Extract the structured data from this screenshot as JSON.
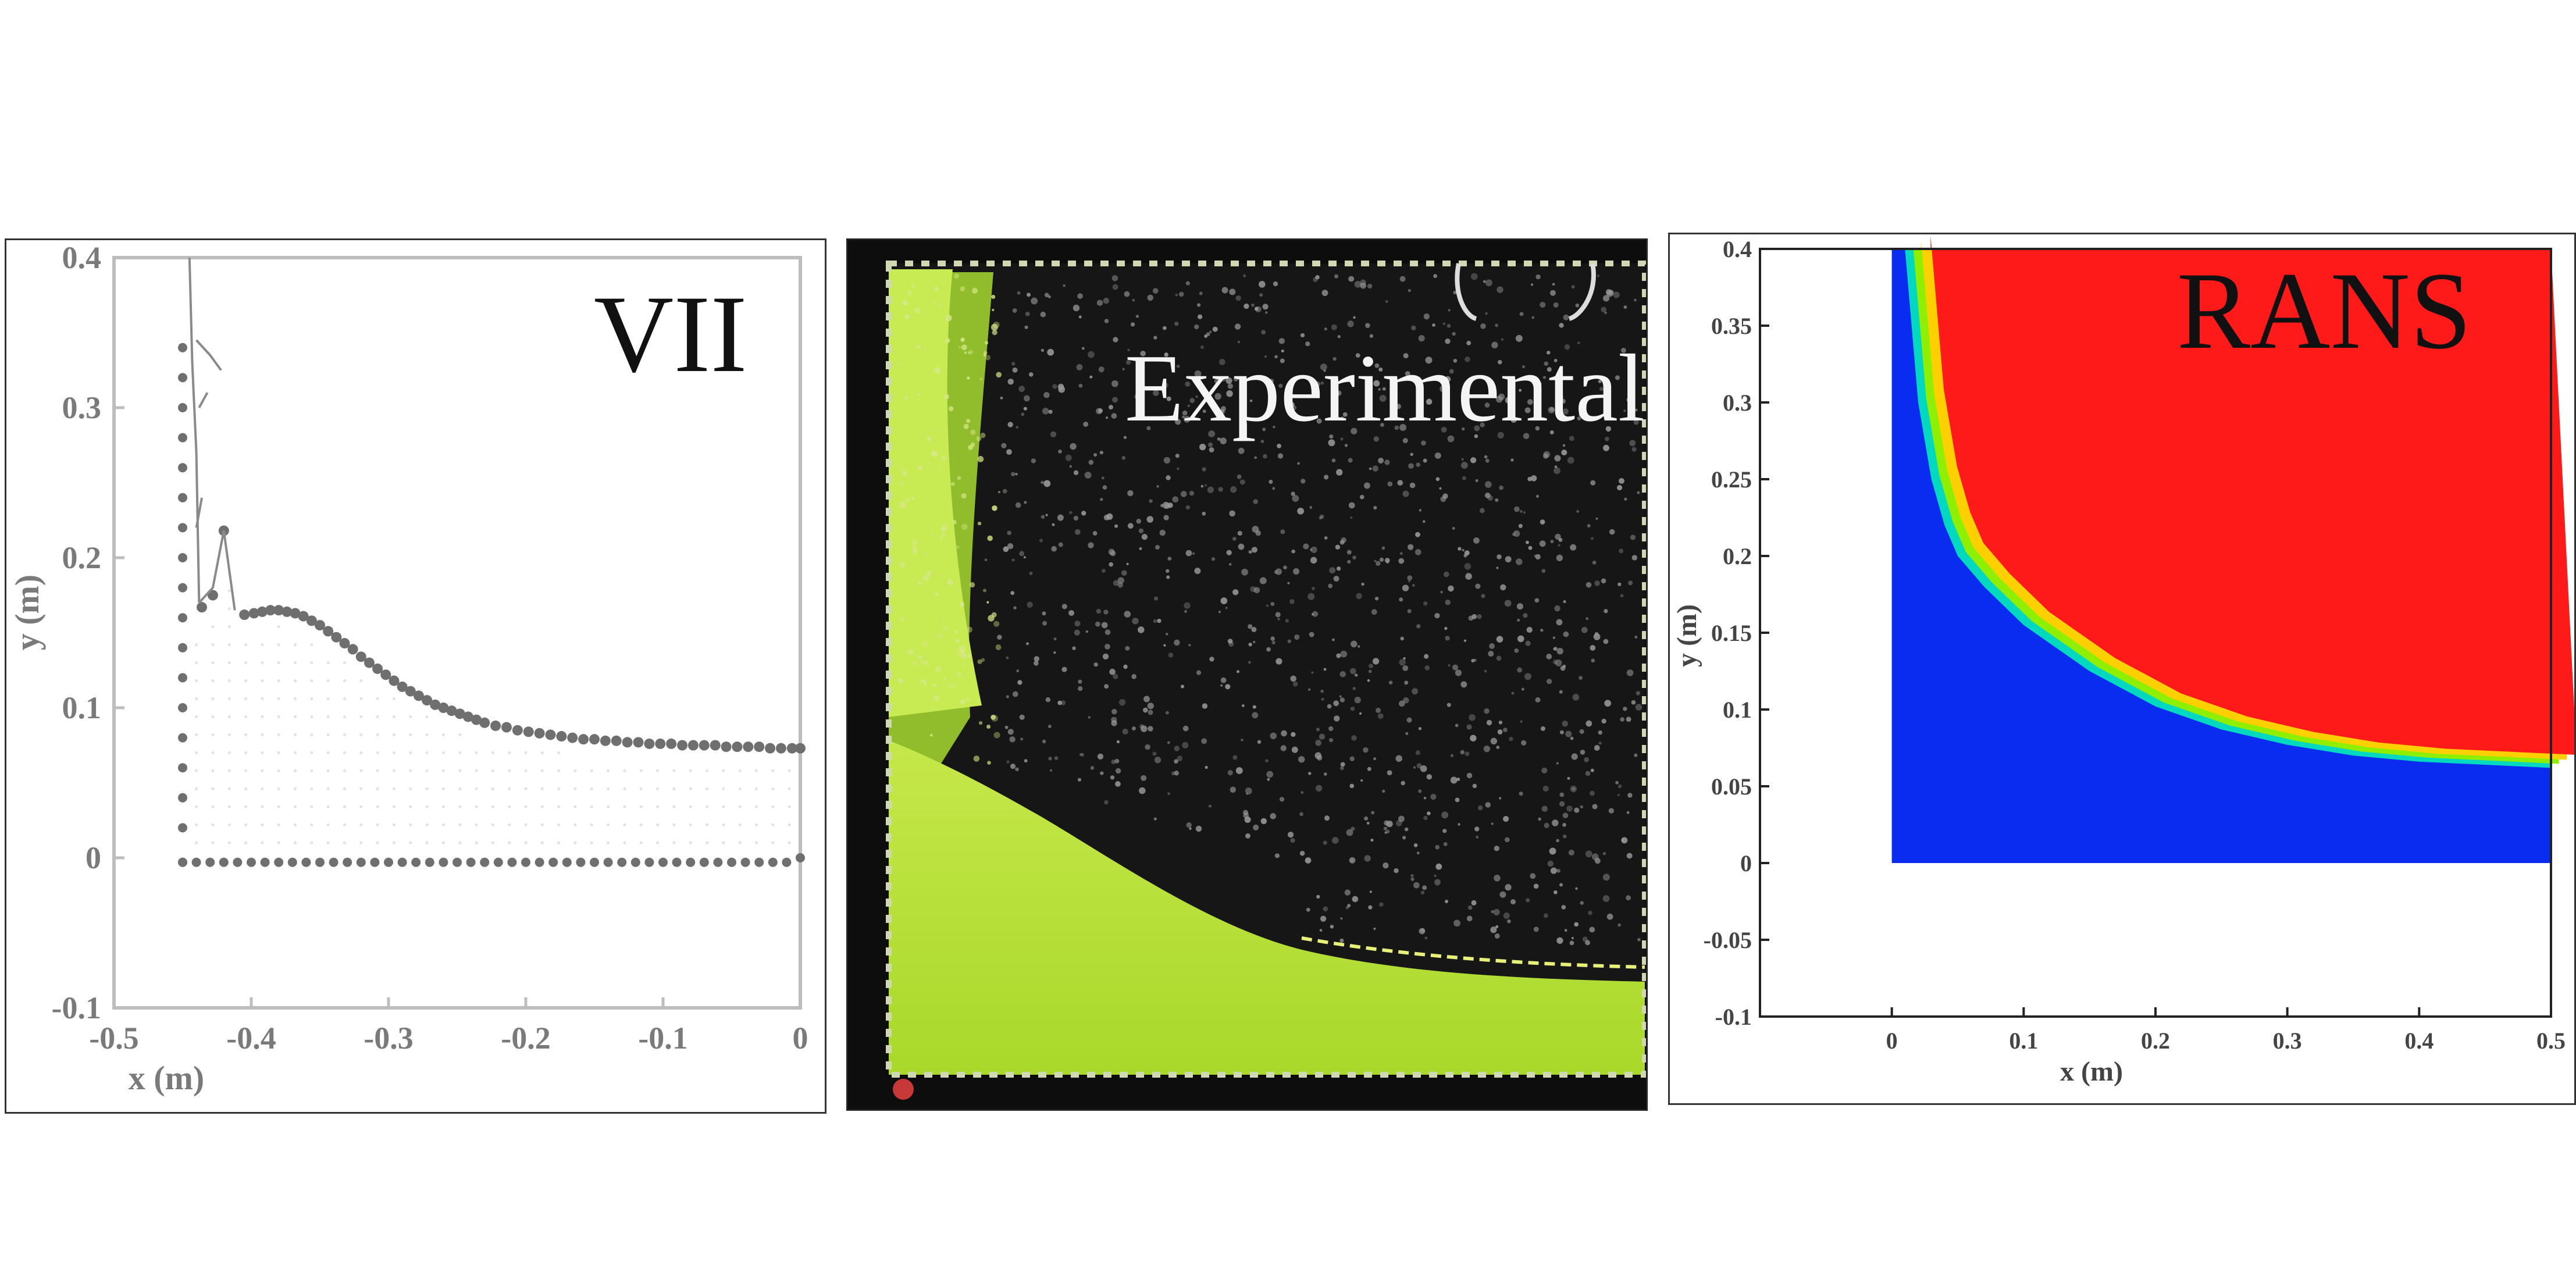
{
  "chart_data": [
    {
      "type": "scatter",
      "title": "VII",
      "xlabel": "x (m)",
      "ylabel": "y (m)",
      "xlim": [
        -0.5,
        0
      ],
      "ylim": [
        -0.1,
        0.4
      ],
      "x_ticks": [
        "-0.5",
        "-0.4",
        "-0.3",
        "-0.2",
        "-0.1",
        "0"
      ],
      "y_ticks": [
        "0.4",
        "0.3",
        "0.2",
        "0.1",
        "0",
        "-0.1"
      ],
      "grid": false,
      "series": [
        {
          "x": [
            -0.45,
            -0.45,
            -0.45,
            -0.45,
            -0.45,
            -0.45,
            -0.45,
            -0.45,
            -0.45,
            -0.45,
            -0.45,
            -0.45,
            -0.45,
            -0.45,
            -0.45,
            -0.45,
            -0.45,
            -0.45
          ],
          "y": [
            -0.003,
            0.02,
            0.04,
            0.06,
            0.08,
            0.1,
            0.12,
            0.14,
            0.16,
            0.18,
            0.2,
            0.22,
            0.24,
            0.26,
            0.28,
            0.3,
            0.32,
            0.34
          ]
        },
        {
          "x": [
            -0.45,
            -0.44,
            -0.43,
            -0.42,
            -0.41,
            -0.4,
            -0.39,
            -0.38,
            -0.37,
            -0.36,
            -0.35,
            -0.34,
            -0.33,
            -0.32,
            -0.31,
            -0.3,
            -0.29,
            -0.28,
            -0.27,
            -0.26,
            -0.25,
            -0.24,
            -0.23,
            -0.22,
            -0.21,
            -0.2,
            -0.19,
            -0.18,
            -0.17,
            -0.16,
            -0.15,
            -0.14,
            -0.13,
            -0.12,
            -0.11,
            -0.1,
            -0.09,
            -0.08,
            -0.07,
            -0.06,
            -0.05,
            -0.04,
            -0.03,
            -0.02,
            -0.01,
            0
          ],
          "y": [
            -0.003,
            -0.003,
            -0.003,
            -0.003,
            -0.003,
            -0.003,
            -0.003,
            -0.003,
            -0.003,
            -0.003,
            -0.003,
            -0.003,
            -0.003,
            -0.003,
            -0.003,
            -0.003,
            -0.003,
            -0.003,
            -0.003,
            -0.003,
            -0.003,
            -0.003,
            -0.003,
            -0.003,
            -0.003,
            -0.003,
            -0.003,
            -0.003,
            -0.003,
            -0.003,
            -0.003,
            -0.003,
            -0.003,
            -0.003,
            -0.003,
            -0.003,
            -0.003,
            -0.003,
            -0.003,
            -0.003,
            -0.003,
            -0.003,
            -0.003,
            -0.003,
            -0.003,
            0.0
          ]
        },
        {
          "x": [
            -0.436,
            -0.428,
            -0.42,
            -0.405,
            -0.398,
            -0.392,
            -0.386,
            -0.38,
            -0.374,
            -0.368,
            -0.362,
            -0.356,
            -0.35,
            -0.344,
            -0.338,
            -0.332,
            -0.326,
            -0.32,
            -0.314,
            -0.308,
            -0.302,
            -0.296,
            -0.29,
            -0.284,
            -0.278,
            -0.272,
            -0.266,
            -0.26,
            -0.254,
            -0.248,
            -0.242,
            -0.236,
            -0.23,
            -0.222,
            -0.214,
            -0.206,
            -0.198,
            -0.19,
            -0.182,
            -0.174,
            -0.166,
            -0.158,
            -0.15,
            -0.142,
            -0.134,
            -0.126,
            -0.118,
            -0.11,
            -0.102,
            -0.094,
            -0.086,
            -0.078,
            -0.07,
            -0.062,
            -0.054,
            -0.046,
            -0.038,
            -0.03,
            -0.022,
            -0.014,
            -0.006,
            0
          ],
          "y": [
            0.167,
            0.175,
            0.218,
            0.162,
            0.163,
            0.164,
            0.165,
            0.165,
            0.164,
            0.163,
            0.161,
            0.158,
            0.155,
            0.151,
            0.147,
            0.143,
            0.139,
            0.134,
            0.13,
            0.126,
            0.122,
            0.118,
            0.114,
            0.111,
            0.108,
            0.105,
            0.102,
            0.1,
            0.098,
            0.096,
            0.094,
            0.092,
            0.09,
            0.088,
            0.087,
            0.085,
            0.084,
            0.083,
            0.082,
            0.081,
            0.08,
            0.079,
            0.079,
            0.078,
            0.078,
            0.077,
            0.077,
            0.076,
            0.076,
            0.076,
            0.075,
            0.075,
            0.075,
            0.075,
            0.074,
            0.074,
            0.074,
            0.074,
            0.073,
            0.073,
            0.073,
            0.073
          ]
        }
      ]
    },
    {
      "type": "heatmap",
      "title": "RANS",
      "xlabel": "x (m)",
      "ylabel": "y (m)",
      "xlim": [
        0,
        0.5
      ],
      "ylim": [
        -0.1,
        0.4
      ],
      "x_ticks": [
        "0",
        "0.1",
        "0.2",
        "0.3",
        "0.4",
        "0.5"
      ],
      "y_ticks": [
        "0.4",
        "0.35",
        "0.3",
        "0.25",
        "0.2",
        "0.15",
        "0.1",
        "0.05",
        "0",
        "-0.05",
        "-0.1"
      ],
      "colors": {
        "upper": "#ff1a1a",
        "lower": "#0a2cf0",
        "interface": [
          "#ffd000",
          "#8ef000",
          "#00d8c0"
        ]
      },
      "interface": {
        "x": [
          0.01,
          0.015,
          0.02,
          0.03,
          0.04,
          0.05,
          0.07,
          0.1,
          0.15,
          0.2,
          0.25,
          0.3,
          0.35,
          0.4,
          0.45,
          0.5
        ],
        "y": [
          0.4,
          0.35,
          0.3,
          0.25,
          0.22,
          0.2,
          0.18,
          0.155,
          0.125,
          0.102,
          0.087,
          0.077,
          0.07,
          0.066,
          0.064,
          0.062
        ]
      }
    }
  ],
  "panels": {
    "vii": {
      "title": "VII"
    },
    "experimental": {
      "title": "Experimental",
      "colors": {
        "water": "#b7e23a",
        "air": "#141414"
      }
    },
    "rans": {
      "title": "RANS"
    }
  }
}
